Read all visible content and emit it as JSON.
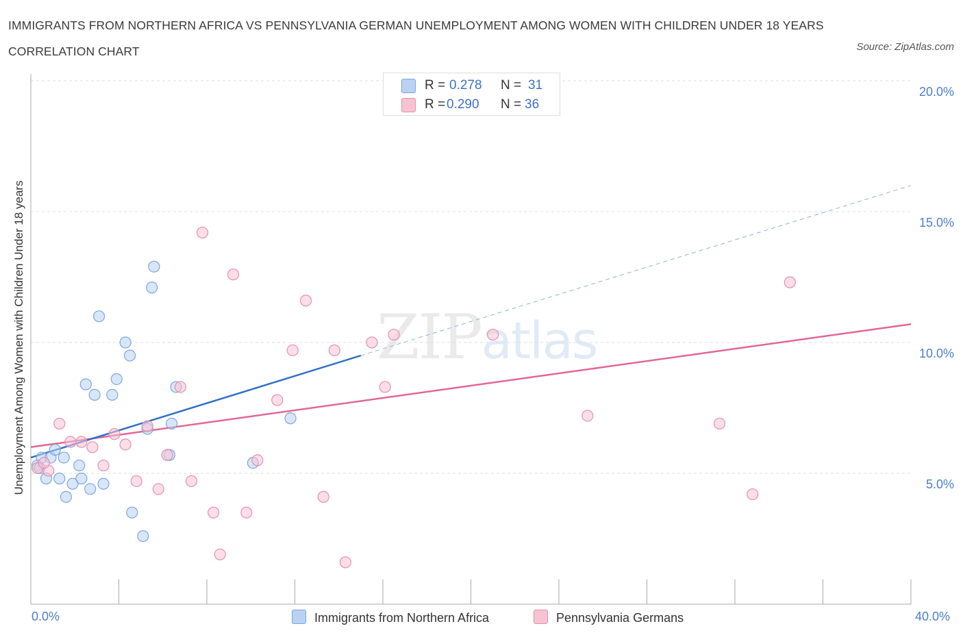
{
  "title": "IMMIGRANTS FROM NORTHERN AFRICA VS PENNSYLVANIA GERMAN UNEMPLOYMENT AMONG WOMEN WITH CHILDREN UNDER 18 YEARS CORRELATION CHART",
  "source": "Source: ZipAtlas.com",
  "watermark": {
    "zip": "ZIP",
    "atlas": "atlas"
  },
  "legend": {
    "rows": [
      {
        "r_label": "R =",
        "r_value": "0.278",
        "n_label": "N =",
        "n_value": "31",
        "color": "#b9d2f3"
      },
      {
        "r_label": "R =",
        "r_value": "0.290",
        "n_label": "N =",
        "n_value": "36",
        "color": "#f7c3d3"
      }
    ]
  },
  "colors": {
    "blue_fill": "#b9d2f3",
    "blue_stroke": "#7aa6de",
    "blue_line": "#2f6fca",
    "pink_fill": "#f7c3d3",
    "pink_stroke": "#e48fab",
    "pink_line": "#e06791",
    "grid": "#dddddd",
    "tick_text": "#4a7fcb"
  },
  "chart_data": {
    "type": "scatter",
    "title": "IMMIGRANTS FROM NORTHERN AFRICA VS PENNSYLVANIA GERMAN UNEMPLOYMENT AMONG WOMEN WITH CHILDREN UNDER 18 YEARS CORRELATION CHART",
    "xlabel": "",
    "ylabel": "Unemployment Among Women with Children Under 18 years",
    "xlim": [
      0,
      40
    ],
    "ylim": [
      0,
      20
    ],
    "x_tick_labels": [
      "0.0%",
      "40.0%"
    ],
    "y_tick_labels": [
      "5.0%",
      "10.0%",
      "15.0%",
      "20.0%"
    ],
    "y_ticks": [
      5,
      10,
      15,
      20
    ],
    "series": [
      {
        "name": "Immigrants from Northern Africa",
        "color": "#b9d2f3",
        "points": [
          [
            0.3,
            5.3
          ],
          [
            0.5,
            5.6
          ],
          [
            0.9,
            5.6
          ],
          [
            0.7,
            4.8
          ],
          [
            1.1,
            5.9
          ],
          [
            1.3,
            4.8
          ],
          [
            1.5,
            5.6
          ],
          [
            1.6,
            4.1
          ],
          [
            1.9,
            4.6
          ],
          [
            2.2,
            5.3
          ],
          [
            2.3,
            4.8
          ],
          [
            2.5,
            8.4
          ],
          [
            2.7,
            4.4
          ],
          [
            2.9,
            8.0
          ],
          [
            3.1,
            11.0
          ],
          [
            3.3,
            4.6
          ],
          [
            3.7,
            8.0
          ],
          [
            3.9,
            8.6
          ],
          [
            4.3,
            10.0
          ],
          [
            4.5,
            9.5
          ],
          [
            4.6,
            3.5
          ],
          [
            5.1,
            2.6
          ],
          [
            5.3,
            6.7
          ],
          [
            5.5,
            12.1
          ],
          [
            5.6,
            12.9
          ],
          [
            6.3,
            5.7
          ],
          [
            6.4,
            6.9
          ],
          [
            6.6,
            8.3
          ],
          [
            10.1,
            5.4
          ],
          [
            11.8,
            7.1
          ],
          [
            0.4,
            5.2
          ]
        ],
        "trend": {
          "x": [
            0,
            15
          ],
          "y": [
            5.6,
            9.5
          ],
          "dashed_extension": {
            "x": [
              15,
              40
            ],
            "y": [
              9.5,
              16.0
            ]
          }
        }
      },
      {
        "name": "Pennsylvania Germans",
        "color": "#f7c3d3",
        "points": [
          [
            0.3,
            5.2
          ],
          [
            0.8,
            5.1
          ],
          [
            1.3,
            6.9
          ],
          [
            1.8,
            6.2
          ],
          [
            2.3,
            6.2
          ],
          [
            2.8,
            6.0
          ],
          [
            3.3,
            5.3
          ],
          [
            3.8,
            6.5
          ],
          [
            4.3,
            6.1
          ],
          [
            4.8,
            4.7
          ],
          [
            5.3,
            6.8
          ],
          [
            5.8,
            4.4
          ],
          [
            6.2,
            5.7
          ],
          [
            6.8,
            8.3
          ],
          [
            7.3,
            4.7
          ],
          [
            7.8,
            14.2
          ],
          [
            8.3,
            3.5
          ],
          [
            8.6,
            1.9
          ],
          [
            9.2,
            12.6
          ],
          [
            9.8,
            3.5
          ],
          [
            10.3,
            5.5
          ],
          [
            11.2,
            7.8
          ],
          [
            11.9,
            9.7
          ],
          [
            12.5,
            11.6
          ],
          [
            13.3,
            4.1
          ],
          [
            13.8,
            9.7
          ],
          [
            14.3,
            1.6
          ],
          [
            15.5,
            10.0
          ],
          [
            16.1,
            8.3
          ],
          [
            16.5,
            10.3
          ],
          [
            21.0,
            10.3
          ],
          [
            25.3,
            7.2
          ],
          [
            31.3,
            6.9
          ],
          [
            32.8,
            4.2
          ],
          [
            34.5,
            12.3
          ],
          [
            0.6,
            5.4
          ]
        ],
        "trend": {
          "x": [
            0,
            40
          ],
          "y": [
            6.0,
            10.7
          ]
        }
      }
    ]
  }
}
